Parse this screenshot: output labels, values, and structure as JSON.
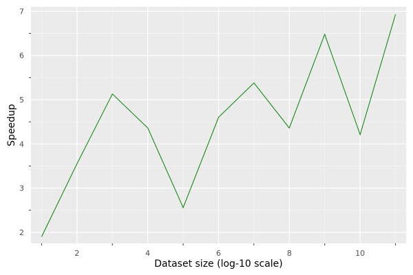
{
  "chart_data": {
    "type": "line",
    "xlabel": "Dataset size (log-10 scale)",
    "ylabel": "Speedup",
    "xlim": [
      0.7,
      11.3
    ],
    "ylim": [
      1.75,
      7.1
    ],
    "x_ticks": [
      2,
      4,
      6,
      8,
      10
    ],
    "x_minor_ticks": [
      1,
      3,
      5,
      7,
      9,
      11
    ],
    "y_ticks": [
      2,
      3,
      4,
      5,
      6,
      7
    ],
    "y_minor_ticks": [
      2.5,
      3.5,
      4.5,
      5.5,
      6.5
    ],
    "grid": true,
    "series": [
      {
        "color": "#008000",
        "x": [
          1,
          2,
          3,
          4,
          5,
          6,
          7,
          8,
          9,
          10,
          11
        ],
        "y": [
          1.9,
          3.55,
          5.13,
          4.36,
          2.56,
          4.6,
          5.38,
          4.36,
          6.48,
          4.21,
          6.93
        ]
      }
    ],
    "colors": {
      "panel": "#ebebeb",
      "grid_major": "#ffffff",
      "tick_text": "#4d4d4d"
    }
  }
}
